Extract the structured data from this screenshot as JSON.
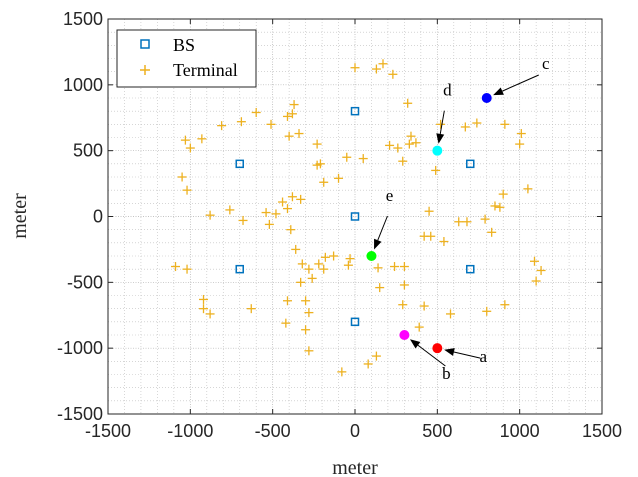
{
  "chart_data": {
    "type": "scatter",
    "xlabel": "meter",
    "ylabel": "meter",
    "xlim": [
      -1500,
      1500
    ],
    "ylim": [
      -1500,
      1500
    ],
    "xticks": [
      -1500,
      -1000,
      -500,
      0,
      500,
      1000,
      1500
    ],
    "yticks": [
      -1500,
      -1000,
      -500,
      0,
      500,
      1000,
      1500
    ],
    "xtick_labels": [
      "-1500",
      "-1000",
      "-500",
      "0",
      "500",
      "1000",
      "1500"
    ],
    "ytick_labels": [
      "-1500",
      "-1000",
      "-500",
      "0",
      "500",
      "1000",
      "1500"
    ],
    "grid": true,
    "minor_grid": true,
    "legend_position": "top-left",
    "series": [
      {
        "name": "BS",
        "marker": "square",
        "color": "#0072BD",
        "points": [
          [
            0,
            800
          ],
          [
            -700,
            400
          ],
          [
            700,
            400
          ],
          [
            0,
            0
          ],
          [
            -700,
            -400
          ],
          [
            700,
            -400
          ],
          [
            0,
            -800
          ]
        ]
      },
      {
        "name": "Terminal",
        "marker": "plus",
        "color": "#EDB120",
        "points": [
          [
            0,
            1130
          ],
          [
            130,
            1120
          ],
          [
            170,
            1160
          ],
          [
            230,
            1080
          ],
          [
            -370,
            850
          ],
          [
            -600,
            790
          ],
          [
            -410,
            760
          ],
          [
            -380,
            780
          ],
          [
            -510,
            700
          ],
          [
            -690,
            720
          ],
          [
            -810,
            690
          ],
          [
            -930,
            590
          ],
          [
            -1030,
            580
          ],
          [
            -1000,
            520
          ],
          [
            -340,
            630
          ],
          [
            -400,
            610
          ],
          [
            -230,
            550
          ],
          [
            -210,
            400
          ],
          [
            -230,
            390
          ],
          [
            -190,
            260
          ],
          [
            -100,
            290
          ],
          [
            -50,
            450
          ],
          [
            50,
            440
          ],
          [
            210,
            540
          ],
          [
            260,
            520
          ],
          [
            330,
            550
          ],
          [
            340,
            610
          ],
          [
            370,
            560
          ],
          [
            290,
            420
          ],
          [
            320,
            860
          ],
          [
            490,
            350
          ],
          [
            520,
            700
          ],
          [
            670,
            680
          ],
          [
            740,
            710
          ],
          [
            910,
            700
          ],
          [
            1010,
            630
          ],
          [
            1000,
            550
          ],
          [
            1050,
            210
          ],
          [
            900,
            170
          ],
          [
            880,
            70
          ],
          [
            850,
            80
          ],
          [
            790,
            -20
          ],
          [
            680,
            -40
          ],
          [
            630,
            -40
          ],
          [
            830,
            -120
          ],
          [
            540,
            -190
          ],
          [
            460,
            -150
          ],
          [
            420,
            -150
          ],
          [
            450,
            40
          ],
          [
            1090,
            -340
          ],
          [
            1130,
            -410
          ],
          [
            1100,
            -490
          ],
          [
            300,
            -380
          ],
          [
            240,
            -380
          ],
          [
            140,
            -390
          ],
          [
            150,
            -540
          ],
          [
            300,
            -520
          ],
          [
            290,
            -670
          ],
          [
            420,
            -680
          ],
          [
            390,
            -840
          ],
          [
            580,
            -740
          ],
          [
            800,
            -720
          ],
          [
            910,
            -670
          ],
          [
            130,
            -1060
          ],
          [
            80,
            -1120
          ],
          [
            -80,
            -1180
          ],
          [
            -30,
            -320
          ],
          [
            -40,
            -370
          ],
          [
            -180,
            -310
          ],
          [
            -220,
            -360
          ],
          [
            -130,
            -300
          ],
          [
            -190,
            -400
          ],
          [
            -320,
            -360
          ],
          [
            -280,
            -400
          ],
          [
            -260,
            -470
          ],
          [
            -330,
            -500
          ],
          [
            -300,
            -640
          ],
          [
            -410,
            -640
          ],
          [
            -280,
            -730
          ],
          [
            -420,
            -810
          ],
          [
            -300,
            -860
          ],
          [
            -280,
            -1020
          ],
          [
            -630,
            -700
          ],
          [
            -880,
            -740
          ],
          [
            -920,
            -700
          ],
          [
            -920,
            -630
          ],
          [
            -1020,
            -400
          ],
          [
            -1090,
            -380
          ],
          [
            -760,
            50
          ],
          [
            -880,
            10
          ],
          [
            -680,
            -30
          ],
          [
            -540,
            30
          ],
          [
            -520,
            -60
          ],
          [
            -480,
            20
          ],
          [
            -440,
            110
          ],
          [
            -380,
            150
          ],
          [
            -410,
            60
          ],
          [
            -330,
            130
          ],
          [
            -390,
            -100
          ],
          [
            -360,
            -250
          ],
          [
            -1020,
            200
          ],
          [
            -1050,
            300
          ]
        ]
      }
    ],
    "highlighted_points": [
      {
        "label": "a",
        "x": 500,
        "y": -1000,
        "color": "#FF0000"
      },
      {
        "label": "b",
        "x": 300,
        "y": -900,
        "color": "#FF00FF"
      },
      {
        "label": "c",
        "x": 800,
        "y": 900,
        "color": "#0000FF"
      },
      {
        "label": "d",
        "x": 500,
        "y": 500,
        "color": "#00FFFF"
      },
      {
        "label": "e",
        "x": 100,
        "y": -300,
        "color": "#00FF00"
      }
    ]
  }
}
